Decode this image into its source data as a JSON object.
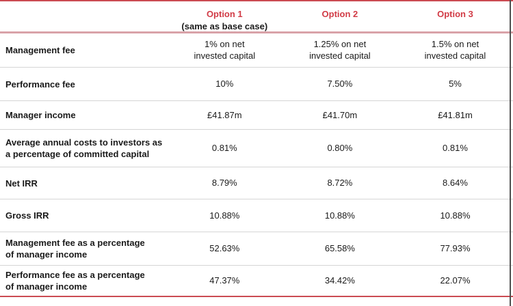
{
  "colors": {
    "accent_red": "#d13b46",
    "border_red": "#cb4a52",
    "border_pink": "#d9a2a8",
    "divider_gray": "#d5d5d5",
    "edge_dark": "#4e4e4e",
    "text_black": "#1a1a1a"
  },
  "header": {
    "columns": [
      {
        "label": "Option 1",
        "sublabel": "(same as base case)"
      },
      {
        "label": "Option 2",
        "sublabel": ""
      },
      {
        "label": "Option 3",
        "sublabel": ""
      }
    ]
  },
  "rows": [
    {
      "label": "Management fee",
      "values": [
        "1% on net\ninvested capital",
        "1.25% on net\ninvested capital",
        "1.5% on net\ninvested capital"
      ]
    },
    {
      "label": "Performance fee",
      "values": [
        "10%",
        "7.50%",
        "5%"
      ]
    },
    {
      "label": "Manager income",
      "values": [
        "£41.87m",
        "£41.70m",
        "£41.81m"
      ]
    },
    {
      "label": "Average annual costs to investors as\na percentage of committed capital",
      "values": [
        "0.81%",
        "0.80%",
        "0.81%"
      ]
    },
    {
      "label": "Net IRR",
      "values": [
        "8.79%",
        "8.72%",
        "8.64%"
      ]
    },
    {
      "label": "Gross IRR",
      "values": [
        "10.88%",
        "10.88%",
        "10.88%"
      ]
    },
    {
      "label": "Management fee as a percentage\nof manager income",
      "values": [
        "52.63%",
        "65.58%",
        "77.93%"
      ]
    },
    {
      "label": "Performance fee as a percentage\nof manager income",
      "values": [
        "47.37%",
        "34.42%",
        "22.07%"
      ]
    }
  ]
}
